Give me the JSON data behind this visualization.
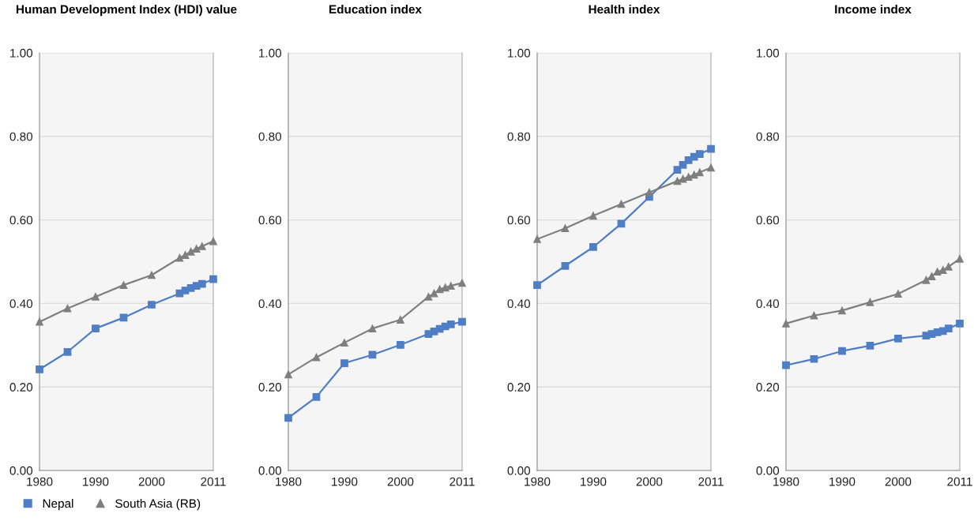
{
  "chart_data": [
    {
      "type": "line",
      "title": "Human Development Index (HDI) value",
      "x": [
        1980,
        1985,
        1990,
        1995,
        2000,
        2005,
        2006,
        2007,
        2008,
        2009,
        2011
      ],
      "xlim": [
        1980,
        2011
      ],
      "xticks": [
        1980,
        1990,
        2000,
        2011
      ],
      "ylim": [
        0,
        1
      ],
      "yticks": [
        {
          "value": 0,
          "label": "0.00"
        },
        {
          "value": 0.2,
          "label": "0.20"
        },
        {
          "value": 0.4,
          "label": "0.40"
        },
        {
          "value": 0.6,
          "label": "0.60"
        },
        {
          "value": 0.8,
          "label": "0.80"
        },
        {
          "value": 1,
          "label": "1.00"
        }
      ],
      "grid": "y",
      "legend": "bottom",
      "series": [
        {
          "name": "Nepal",
          "color": "#4f7ec4",
          "marker": "square",
          "values": [
            0.242,
            0.284,
            0.34,
            0.366,
            0.397,
            0.424,
            0.431,
            0.437,
            0.442,
            0.447,
            0.458
          ]
        },
        {
          "name": "South Asia (RB)",
          "color": "#7f7f7f",
          "marker": "triangle",
          "values": [
            0.356,
            0.388,
            0.416,
            0.444,
            0.468,
            0.509,
            0.516,
            0.524,
            0.531,
            0.537,
            0.549
          ]
        }
      ]
    },
    {
      "type": "line",
      "title": "Education index",
      "x": [
        1980,
        1985,
        1990,
        1995,
        2000,
        2005,
        2006,
        2007,
        2008,
        2009,
        2011
      ],
      "xlim": [
        1980,
        2011
      ],
      "xticks": [
        1980,
        1990,
        2000,
        2011
      ],
      "ylim": [
        0,
        1
      ],
      "yticks": [
        {
          "value": 0,
          "label": "0.00"
        },
        {
          "value": 0.2,
          "label": "0.20"
        },
        {
          "value": 0.4,
          "label": "0.40"
        },
        {
          "value": 0.6,
          "label": "0.60"
        },
        {
          "value": 0.8,
          "label": "0.80"
        },
        {
          "value": 1,
          "label": "1.00"
        }
      ],
      "grid": "y",
      "series": [
        {
          "color": "#4f7ec4",
          "marker": "square",
          "values": [
            0.126,
            0.176,
            0.257,
            0.277,
            0.301,
            0.327,
            0.333,
            0.339,
            0.345,
            0.35,
            0.356
          ]
        },
        {
          "color": "#7f7f7f",
          "marker": "triangle",
          "values": [
            0.23,
            0.271,
            0.306,
            0.34,
            0.361,
            0.416,
            0.424,
            0.434,
            0.438,
            0.442,
            0.449
          ]
        }
      ]
    },
    {
      "type": "line",
      "title": "Health index",
      "x": [
        1980,
        1985,
        1990,
        1995,
        2000,
        2005,
        2006,
        2007,
        2008,
        2009,
        2011
      ],
      "xlim": [
        1980,
        2011
      ],
      "xticks": [
        1980,
        1990,
        2000,
        2011
      ],
      "ylim": [
        0,
        1
      ],
      "yticks": [
        {
          "value": 0,
          "label": "0.00"
        },
        {
          "value": 0.2,
          "label": "0.20"
        },
        {
          "value": 0.4,
          "label": "0.40"
        },
        {
          "value": 0.6,
          "label": "0.60"
        },
        {
          "value": 0.8,
          "label": "0.80"
        },
        {
          "value": 1,
          "label": "1.00"
        }
      ],
      "grid": "y",
      "series": [
        {
          "color": "#4f7ec4",
          "marker": "square",
          "values": [
            0.444,
            0.49,
            0.535,
            0.591,
            0.655,
            0.72,
            0.732,
            0.743,
            0.751,
            0.758,
            0.77
          ]
        },
        {
          "color": "#7f7f7f",
          "marker": "triangle",
          "values": [
            0.554,
            0.58,
            0.61,
            0.638,
            0.666,
            0.693,
            0.698,
            0.703,
            0.708,
            0.714,
            0.725
          ]
        }
      ]
    },
    {
      "type": "line",
      "title": "Income index",
      "x": [
        1980,
        1985,
        1990,
        1995,
        2000,
        2005,
        2006,
        2007,
        2008,
        2009,
        2011
      ],
      "xlim": [
        1980,
        2011
      ],
      "xticks": [
        1980,
        1990,
        2000,
        2011
      ],
      "ylim": [
        0,
        1
      ],
      "yticks": [
        {
          "value": 0,
          "label": "0.00"
        },
        {
          "value": 0.2,
          "label": "0.20"
        },
        {
          "value": 0.4,
          "label": "0.40"
        },
        {
          "value": 0.6,
          "label": "0.60"
        },
        {
          "value": 0.8,
          "label": "0.80"
        },
        {
          "value": 1,
          "label": "1.00"
        }
      ],
      "grid": "y",
      "series": [
        {
          "color": "#4f7ec4",
          "marker": "square",
          "values": [
            0.252,
            0.267,
            0.286,
            0.299,
            0.316,
            0.323,
            0.327,
            0.331,
            0.334,
            0.34,
            0.352
          ]
        },
        {
          "color": "#7f7f7f",
          "marker": "triangle",
          "values": [
            0.352,
            0.371,
            0.383,
            0.403,
            0.423,
            0.456,
            0.465,
            0.476,
            0.48,
            0.488,
            0.507
          ]
        }
      ]
    }
  ]
}
